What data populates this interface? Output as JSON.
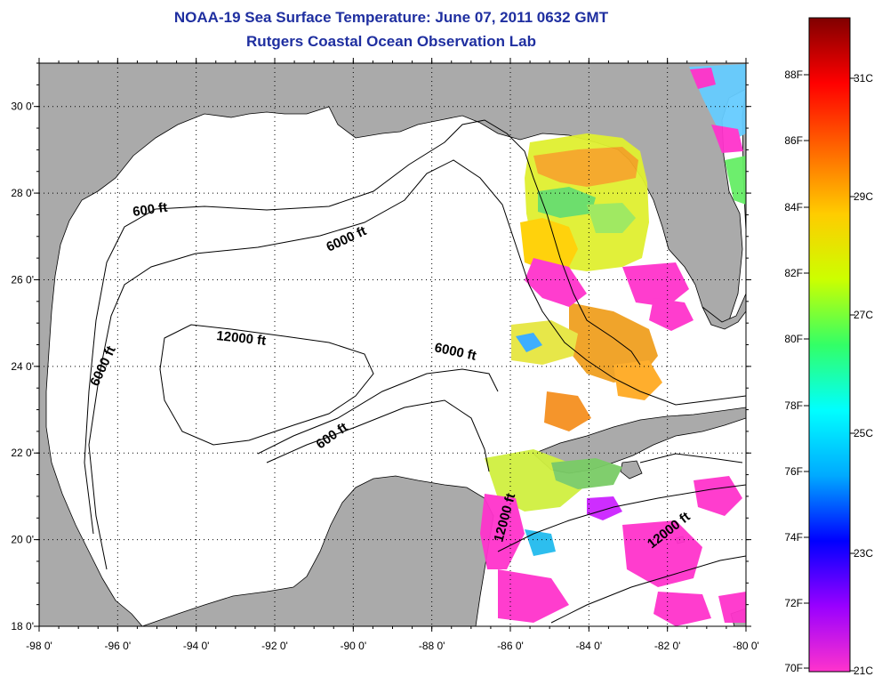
{
  "title": "NOAA-19 Sea Surface Temperature:  June 07, 2011 0632 GMT",
  "subtitle": "Rutgers Coastal Ocean Observation Lab",
  "map": {
    "lon_range": [
      -98,
      -80
    ],
    "lat_range": [
      18,
      31
    ],
    "grid": true,
    "lon_ticks": [
      "-98 0'",
      "-96 0'",
      "-94 0'",
      "-92 0'",
      "-90 0'",
      "-88 0'",
      "-86 0'",
      "-84 0'",
      "-82 0'",
      "-80 0'"
    ],
    "lat_ticks": [
      "18 0'",
      "20 0'",
      "22 0'",
      "24 0'",
      "26 0'",
      "28 0'",
      "30 0'"
    ],
    "contour_labels": [
      "600 ft",
      "6000 ft",
      "12000 ft",
      "6000 ft",
      "6000 ft",
      "600 ft",
      "12000 ft",
      "12000 ft"
    ],
    "land_color": "#aaaaaa",
    "water_color": "#ffffff"
  },
  "colorbar": {
    "fahrenheit_labels": [
      "88F",
      "86F",
      "84F",
      "82F",
      "80F",
      "78F",
      "76F",
      "74F",
      "72F",
      "70F"
    ],
    "celsius_labels": [
      "31C",
      "29C",
      "27C",
      "25C",
      "23C",
      "21C"
    ],
    "colors": [
      "#ff33cc",
      "#9900ff",
      "#0000ff",
      "#00aaff",
      "#00ffff",
      "#33ff66",
      "#ccff00",
      "#ffcc00",
      "#ff6600",
      "#ff0000",
      "#800000"
    ]
  }
}
